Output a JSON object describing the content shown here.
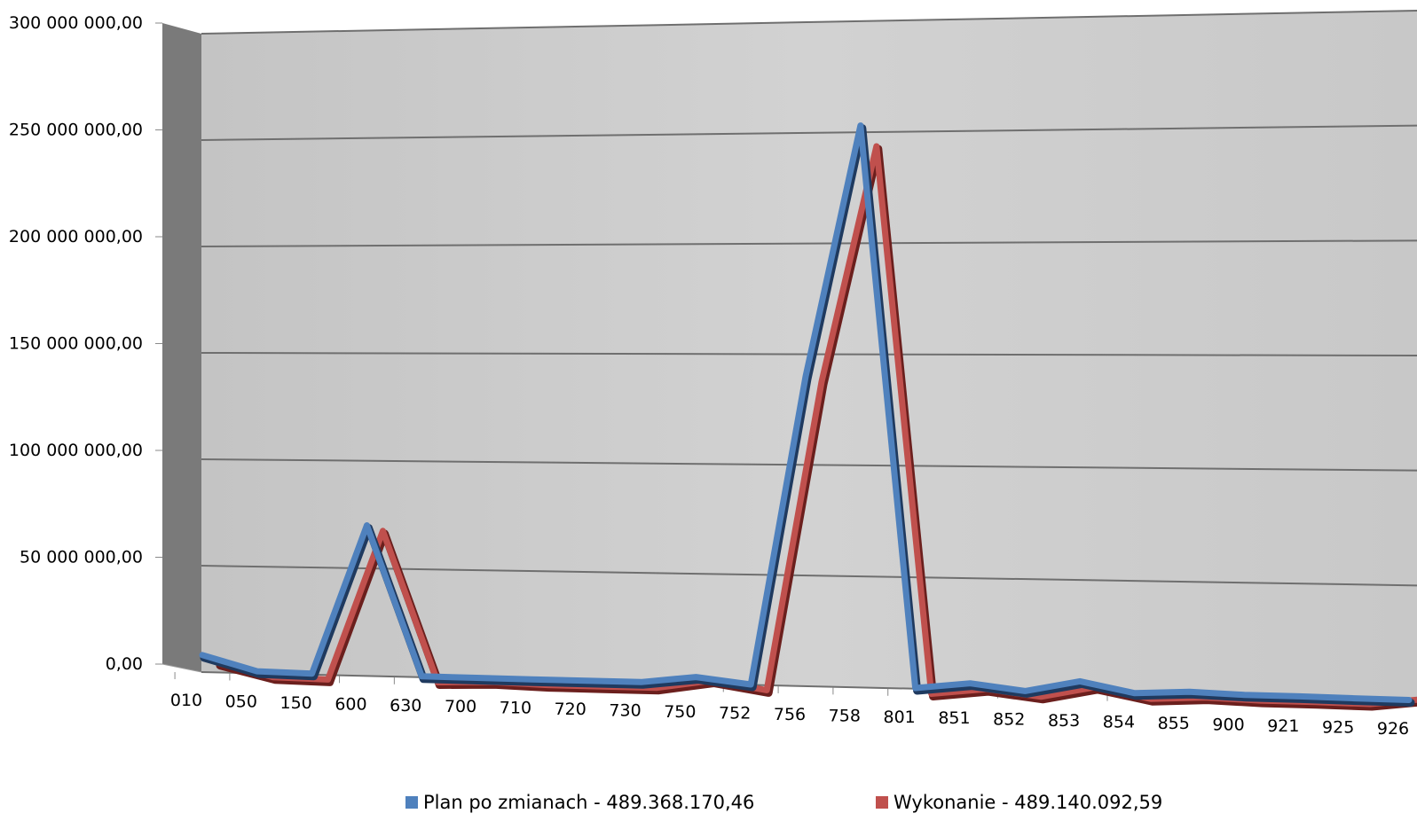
{
  "chart_data": {
    "type": "line",
    "title": "",
    "xlabel": "",
    "ylabel": "",
    "ylim": [
      0,
      300000000
    ],
    "y_ticks": [
      "0,00",
      "50 000 000,00",
      "100 000 000,00",
      "150 000 000,00",
      "200 000 000,00",
      "250 000 000,00",
      "300 000 000,00"
    ],
    "y_tick_values": [
      0,
      50000000,
      100000000,
      150000000,
      200000000,
      250000000,
      300000000
    ],
    "categories": [
      "010",
      "050",
      "150",
      "600",
      "630",
      "700",
      "710",
      "720",
      "730",
      "750",
      "752",
      "756",
      "758",
      "801",
      "851",
      "852",
      "853",
      "854",
      "855",
      "900",
      "921",
      "925",
      "926"
    ],
    "grid": true,
    "legend_position": "bottom",
    "series": [
      {
        "name": "Plan po zmianach - 489.368.170,46",
        "color": "#4f81bd",
        "values": [
          8000000,
          1000000,
          500000,
          70000000,
          400000,
          300000,
          200000,
          150000,
          100000,
          3000000,
          200000,
          140000000,
          253000000,
          300000,
          3000000,
          100000,
          5000000,
          300000,
          1500000,
          700000,
          600000,
          300000,
          100000
        ]
      },
      {
        "name": "Wykonanie - 489.140.092,59",
        "color": "#c0504d",
        "values": [
          7000000,
          900000,
          400000,
          70000000,
          300000,
          1000000,
          200000,
          150000,
          100000,
          4000000,
          200000,
          140000000,
          246000000,
          300000,
          3000000,
          100000,
          5000000,
          300000,
          1500000,
          700000,
          600000,
          300000,
          3000000
        ]
      }
    ]
  },
  "legend": {
    "items": [
      {
        "label": "Plan po zmianach - 489.368.170,46",
        "color": "#4f81bd"
      },
      {
        "label": "Wykonanie - 489.140.092,59",
        "color": "#c0504d"
      }
    ]
  }
}
